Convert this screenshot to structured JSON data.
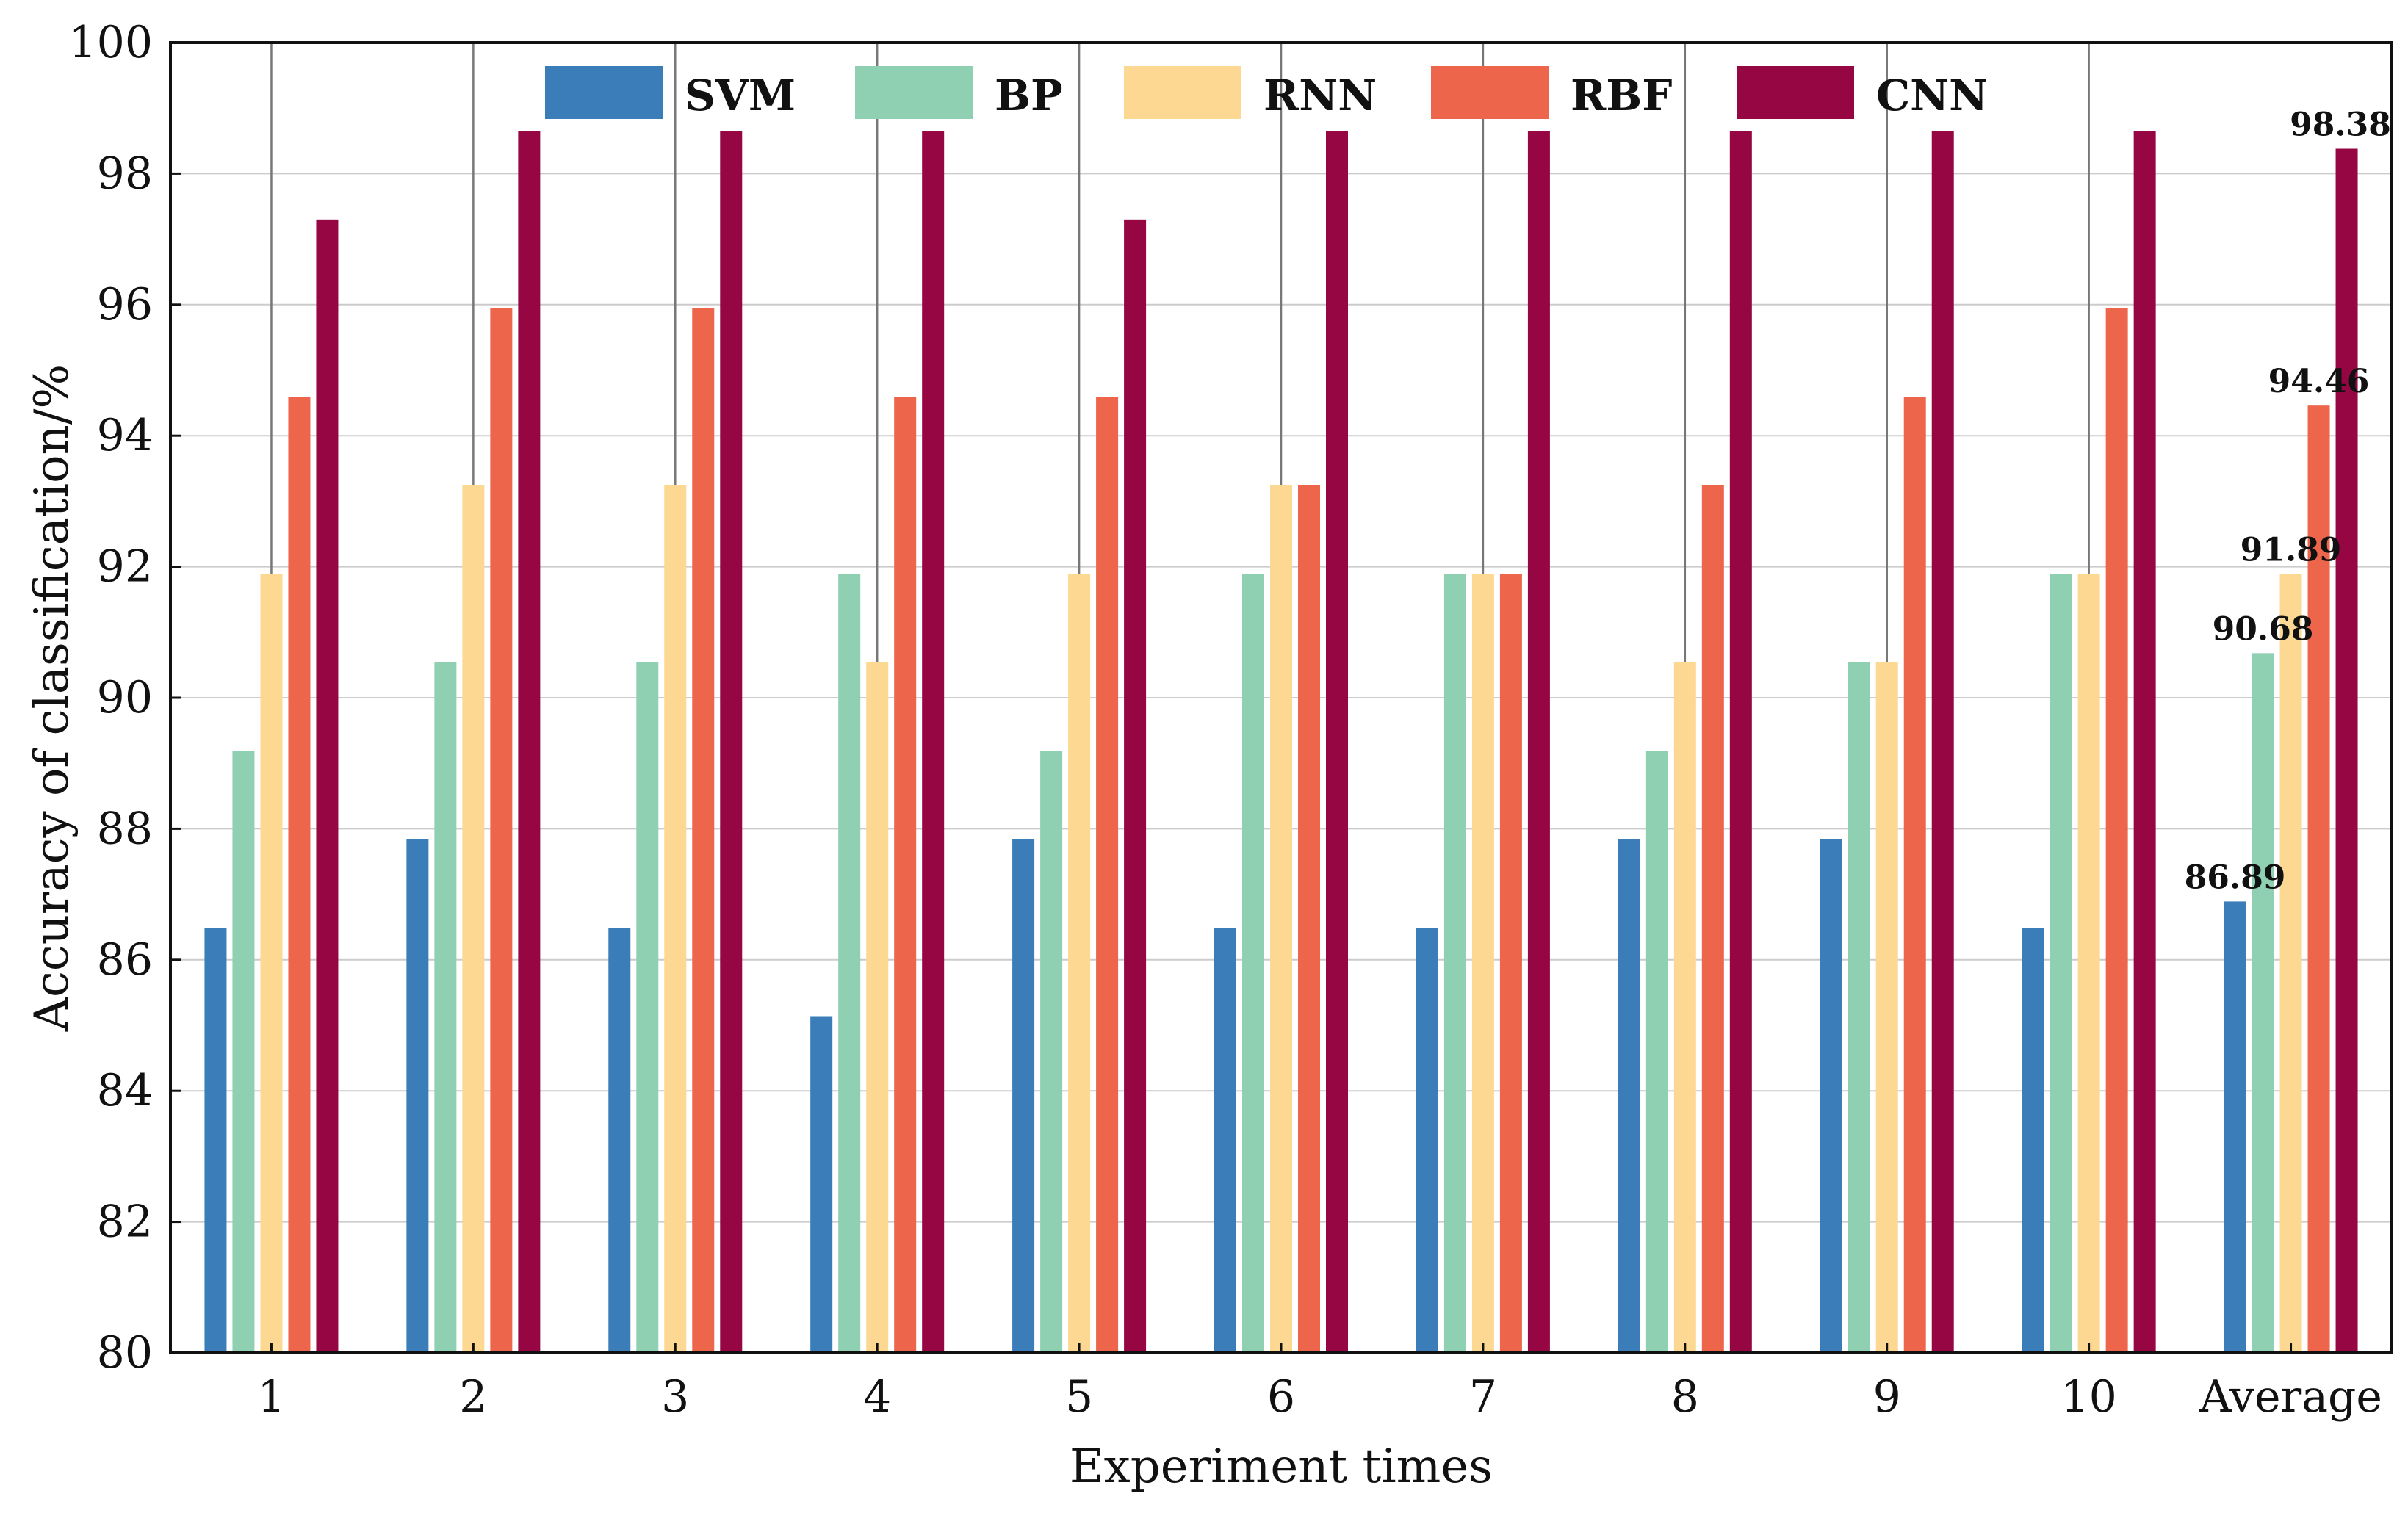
{
  "chart_data": {
    "type": "bar",
    "xlabel": "Experiment times",
    "ylabel": "Accuracy of classification/%",
    "ylim": [
      80,
      100
    ],
    "yticks": [
      80,
      82,
      84,
      86,
      88,
      90,
      92,
      94,
      96,
      98,
      100
    ],
    "grid": "horizontal",
    "legend_position": "top",
    "categories": [
      "1",
      "2",
      "3",
      "4",
      "5",
      "6",
      "7",
      "8",
      "9",
      "10",
      "Average"
    ],
    "series": [
      {
        "name": "SVM",
        "color": "#3a7db8",
        "values": [
          86.49,
          87.84,
          86.49,
          85.14,
          87.84,
          86.49,
          86.49,
          87.84,
          87.84,
          86.49,
          86.89
        ]
      },
      {
        "name": "BP",
        "color": "#8fd0b3",
        "values": [
          89.19,
          90.54,
          90.54,
          91.89,
          89.19,
          91.89,
          91.89,
          89.19,
          90.54,
          91.89,
          90.68
        ]
      },
      {
        "name": "RNN",
        "color": "#fdd892",
        "values": [
          91.89,
          93.24,
          93.24,
          90.54,
          91.89,
          93.24,
          91.89,
          90.54,
          90.54,
          91.89,
          91.89
        ]
      },
      {
        "name": "RBF",
        "color": "#ed654a",
        "values": [
          94.59,
          95.95,
          95.95,
          94.59,
          94.59,
          93.24,
          91.89,
          93.24,
          94.59,
          95.95,
          94.46
        ]
      },
      {
        "name": "CNN",
        "color": "#960642",
        "values": [
          97.3,
          98.65,
          98.65,
          98.65,
          97.3,
          98.65,
          98.65,
          98.65,
          98.65,
          98.65,
          98.38
        ]
      }
    ],
    "data_labels": [
      {
        "category": "Average",
        "series": "SVM",
        "text": "86.89"
      },
      {
        "category": "Average",
        "series": "BP",
        "text": "90.68"
      },
      {
        "category": "Average",
        "series": "RNN",
        "text": "91.89"
      },
      {
        "category": "Average",
        "series": "RBF",
        "text": "94.46"
      },
      {
        "category": "Average",
        "series": "CNN",
        "text": "98.38"
      }
    ]
  }
}
